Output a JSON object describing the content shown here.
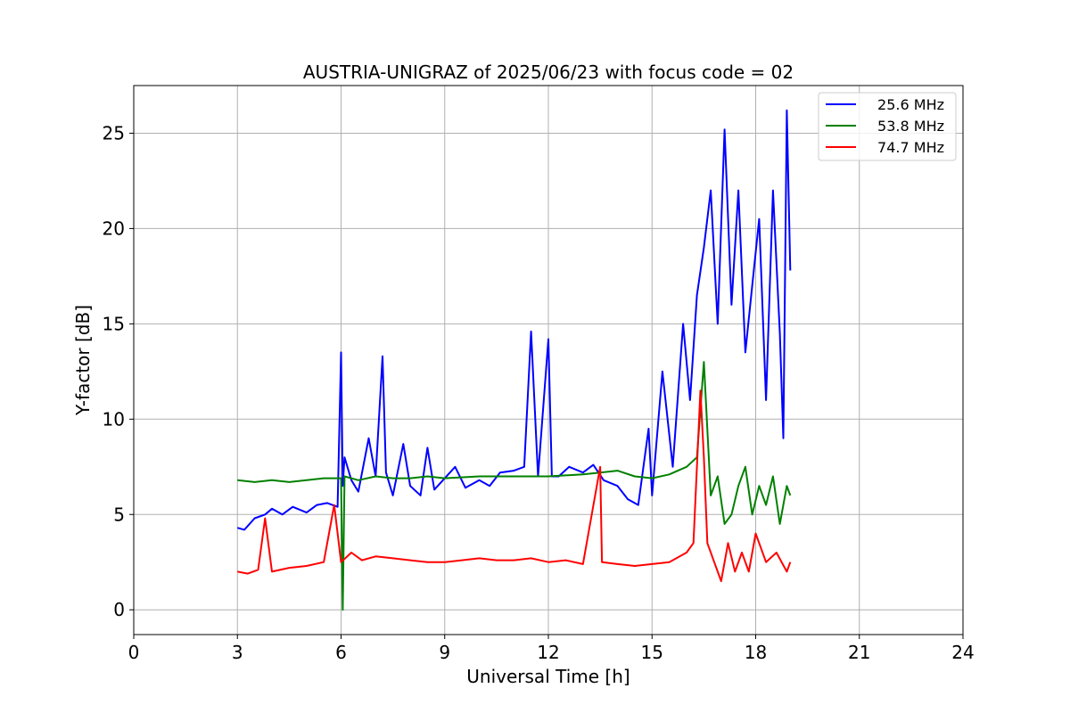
{
  "chart_data": {
    "type": "line",
    "title": "AUSTRIA-UNIGRAZ of 2025/06/23 with focus code = 02",
    "xlabel": "Universal Time [h]",
    "ylabel": "Y-factor [dB]",
    "xlim": [
      0,
      24
    ],
    "ylim": [
      -1.3,
      27.5
    ],
    "xticks": [
      0,
      3,
      6,
      9,
      12,
      15,
      18,
      21,
      24
    ],
    "xtick_labels": [
      "0",
      "3",
      "6",
      "9",
      "12",
      "15",
      "18",
      "21",
      "24"
    ],
    "yticks": [
      0,
      5,
      10,
      15,
      20,
      25
    ],
    "ytick_labels": [
      "0",
      "5",
      "10",
      "15",
      "20",
      "25"
    ],
    "grid": true,
    "legend_position": "top-right",
    "series": [
      {
        "name": "25.6 MHz",
        "color": "#0000ff",
        "x": [
          3.0,
          3.2,
          3.5,
          3.8,
          4.0,
          4.3,
          4.6,
          5.0,
          5.3,
          5.6,
          5.9,
          6.0,
          6.05,
          6.1,
          6.3,
          6.5,
          6.8,
          7.0,
          7.2,
          7.3,
          7.5,
          7.8,
          8.0,
          8.3,
          8.5,
          8.7,
          9.0,
          9.3,
          9.6,
          10.0,
          10.3,
          10.6,
          11.0,
          11.3,
          11.5,
          11.7,
          12.0,
          12.1,
          12.3,
          12.6,
          13.0,
          13.3,
          13.6,
          14.0,
          14.3,
          14.6,
          14.9,
          15.0,
          15.3,
          15.6,
          15.9,
          16.1,
          16.3,
          16.5,
          16.7,
          16.9,
          17.1,
          17.3,
          17.5,
          17.7,
          17.9,
          18.1,
          18.3,
          18.5,
          18.7,
          18.8,
          18.9,
          19.0
        ],
        "y": [
          4.3,
          4.2,
          4.8,
          5.0,
          5.3,
          5.0,
          5.4,
          5.1,
          5.5,
          5.6,
          5.4,
          13.5,
          6.5,
          8.0,
          6.8,
          6.2,
          9.0,
          7.0,
          13.3,
          7.2,
          6.0,
          8.7,
          6.5,
          6.0,
          8.5,
          6.3,
          6.9,
          7.5,
          6.4,
          6.8,
          6.5,
          7.2,
          7.3,
          7.5,
          14.6,
          7.0,
          14.2,
          7.0,
          7.0,
          7.5,
          7.2,
          7.6,
          6.8,
          6.5,
          5.8,
          5.5,
          9.5,
          6.0,
          12.5,
          7.5,
          15.0,
          11.0,
          16.5,
          19.0,
          22.0,
          15.0,
          25.2,
          16.0,
          22.0,
          13.5,
          17.0,
          20.5,
          11.0,
          22.0,
          14.5,
          9.0,
          26.2,
          17.8
        ]
      },
      {
        "name": "53.8 MHz",
        "color": "#008000",
        "x": [
          3.0,
          3.5,
          4.0,
          4.5,
          5.0,
          5.5,
          6.0,
          6.05,
          6.1,
          6.5,
          7.0,
          7.5,
          8.0,
          8.5,
          9.0,
          10.0,
          11.0,
          12.0,
          13.0,
          13.5,
          14.0,
          14.5,
          15.0,
          15.5,
          16.0,
          16.3,
          16.5,
          16.7,
          16.9,
          17.1,
          17.3,
          17.5,
          17.7,
          17.9,
          18.1,
          18.3,
          18.5,
          18.7,
          18.9,
          19.0
        ],
        "y": [
          6.8,
          6.7,
          6.8,
          6.7,
          6.8,
          6.9,
          6.9,
          0.0,
          7.0,
          6.8,
          7.0,
          6.9,
          6.9,
          7.0,
          6.9,
          7.0,
          7.0,
          7.0,
          7.1,
          7.2,
          7.3,
          7.0,
          6.9,
          7.1,
          7.5,
          8.0,
          13.0,
          6.0,
          7.0,
          4.5,
          5.0,
          6.5,
          7.5,
          5.0,
          6.5,
          5.5,
          7.0,
          4.5,
          6.5,
          6.0
        ]
      },
      {
        "name": "74.7 MHz",
        "color": "#ff0000",
        "x": [
          3.0,
          3.3,
          3.6,
          3.8,
          4.0,
          4.5,
          5.0,
          5.5,
          5.8,
          6.0,
          6.3,
          6.6,
          7.0,
          7.5,
          8.0,
          8.5,
          9.0,
          9.5,
          10.0,
          10.5,
          11.0,
          11.5,
          12.0,
          12.5,
          13.0,
          13.5,
          13.55,
          14.0,
          14.5,
          15.0,
          15.5,
          16.0,
          16.2,
          16.4,
          16.5,
          16.6,
          16.8,
          17.0,
          17.2,
          17.4,
          17.6,
          17.8,
          18.0,
          18.3,
          18.6,
          18.9,
          19.0
        ],
        "y": [
          2.0,
          1.9,
          2.1,
          4.8,
          2.0,
          2.2,
          2.3,
          2.5,
          5.5,
          2.5,
          3.0,
          2.6,
          2.8,
          2.7,
          2.6,
          2.5,
          2.5,
          2.6,
          2.7,
          2.6,
          2.6,
          2.7,
          2.5,
          2.6,
          2.4,
          7.5,
          2.5,
          2.4,
          2.3,
          2.4,
          2.5,
          3.0,
          3.5,
          11.5,
          8.0,
          3.5,
          2.5,
          1.5,
          3.5,
          2.0,
          3.0,
          2.0,
          4.0,
          2.5,
          3.0,
          2.0,
          2.5
        ]
      }
    ]
  }
}
